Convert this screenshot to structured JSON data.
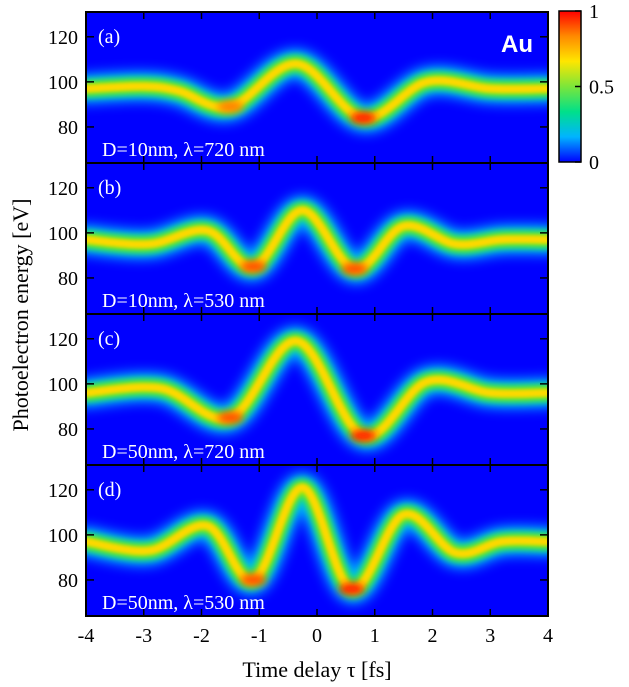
{
  "chart_data": {
    "type": "heatmap",
    "element_label": "Au",
    "xlabel": "Time delay τ [fs]",
    "ylabel": "Photoelectron energy [eV]",
    "xlim": [
      -4,
      4
    ],
    "ylim": [
      64,
      131
    ],
    "xticks": [
      -4,
      -3,
      -2,
      -1,
      0,
      1,
      2,
      3,
      4
    ],
    "yticks": [
      80,
      100,
      120
    ],
    "colorbar": {
      "min": 0,
      "max": 1,
      "ticks": [
        0,
        0.5,
        1
      ],
      "colors": [
        "#0000ff",
        "#00b4ff",
        "#00e08a",
        "#7ce63a",
        "#ffe600",
        "#ff8a00",
        "#ff0000"
      ]
    },
    "panels": [
      {
        "letter": "(a)",
        "caption": "D=10nm, λ=720 nm",
        "ridge": [
          {
            "x": -4,
            "y": 97
          },
          {
            "x": -3.0,
            "y": 98
          },
          {
            "x": -2.4,
            "y": 96
          },
          {
            "x": -1.5,
            "y": 89
          },
          {
            "x": -0.35,
            "y": 108
          },
          {
            "x": 0.8,
            "y": 84
          },
          {
            "x": 1.9,
            "y": 100
          },
          {
            "x": 3.0,
            "y": 97
          },
          {
            "x": 4,
            "y": 97
          }
        ],
        "peaks": [
          {
            "x": -1.5,
            "y": 89,
            "value": 0.85
          },
          {
            "x": 0.8,
            "y": 84,
            "value": 1.0
          }
        ]
      },
      {
        "letter": "(b)",
        "caption": "D=10nm, λ=530 nm",
        "ridge": [
          {
            "x": -4,
            "y": 97
          },
          {
            "x": -2.9,
            "y": 95
          },
          {
            "x": -1.9,
            "y": 101
          },
          {
            "x": -1.1,
            "y": 85
          },
          {
            "x": -0.25,
            "y": 110
          },
          {
            "x": 0.65,
            "y": 84
          },
          {
            "x": 1.5,
            "y": 103
          },
          {
            "x": 2.4,
            "y": 95
          },
          {
            "x": 3.2,
            "y": 97
          },
          {
            "x": 4,
            "y": 97
          }
        ],
        "peaks": [
          {
            "x": -1.1,
            "y": 85,
            "value": 0.9
          },
          {
            "x": 0.65,
            "y": 84,
            "value": 0.95
          }
        ]
      },
      {
        "letter": "(c)",
        "caption": "D=50nm, λ=720 nm",
        "ridge": [
          {
            "x": -4,
            "y": 96
          },
          {
            "x": -2.7,
            "y": 98
          },
          {
            "x": -1.5,
            "y": 85
          },
          {
            "x": -0.35,
            "y": 119
          },
          {
            "x": 0.8,
            "y": 77
          },
          {
            "x": 1.9,
            "y": 101
          },
          {
            "x": 3.0,
            "y": 96
          },
          {
            "x": 4,
            "y": 96
          }
        ],
        "peaks": [
          {
            "x": -1.5,
            "y": 85,
            "value": 0.9
          },
          {
            "x": 0.8,
            "y": 77,
            "value": 1.0
          }
        ]
      },
      {
        "letter": "(d)",
        "caption": "D=50nm, λ=530 nm",
        "ridge": [
          {
            "x": -4,
            "y": 97
          },
          {
            "x": -2.9,
            "y": 93
          },
          {
            "x": -1.9,
            "y": 104
          },
          {
            "x": -1.1,
            "y": 80
          },
          {
            "x": -0.25,
            "y": 121
          },
          {
            "x": 0.6,
            "y": 76
          },
          {
            "x": 1.5,
            "y": 109
          },
          {
            "x": 2.4,
            "y": 92
          },
          {
            "x": 3.2,
            "y": 97
          },
          {
            "x": 4,
            "y": 97
          }
        ],
        "peaks": [
          {
            "x": -1.1,
            "y": 80,
            "value": 0.95
          },
          {
            "x": 0.6,
            "y": 76,
            "value": 1.0
          }
        ]
      }
    ]
  }
}
